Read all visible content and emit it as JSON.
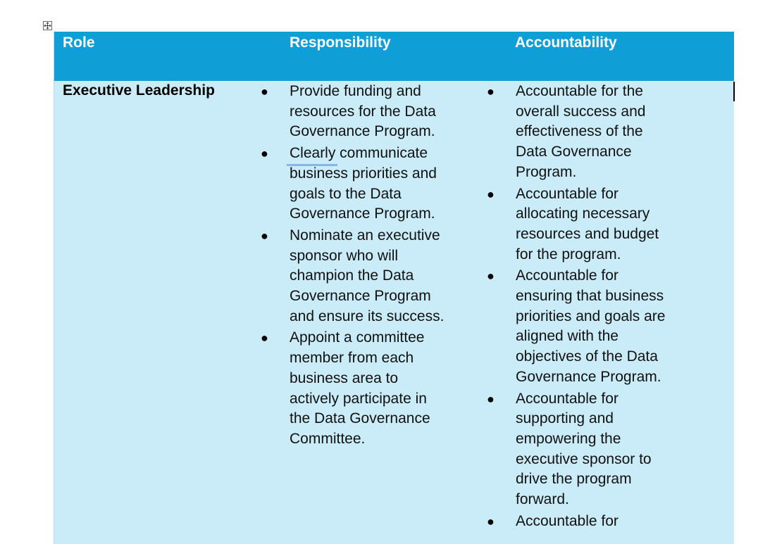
{
  "table": {
    "headers": {
      "role": "Role",
      "responsibility": "Responsibility",
      "accountability": "Accountability"
    },
    "rows": [
      {
        "role": "Executive Leadership",
        "responsibility": [
          "Provide funding and resources for the Data Governance Program.",
          "Clearly communicate business priorities and goals to the Data Governance Program.",
          "Nominate an executive sponsor who will champion the Data Governance Program and ensure its success.",
          "Appoint a committee member from each business area to actively participate in the Data Governance Committee."
        ],
        "accountability": [
          "Accountable for the overall success and effectiveness of the Data Governance Program.",
          "Accountable for allocating necessary resources and budget for the program.",
          "Accountable for ensuring that business priorities and goals are aligned with the objectives of the Data Governance Program.",
          "Accountable for supporting and empowering the executive sponsor to drive the program forward.",
          "Accountable for"
        ]
      }
    ]
  },
  "bullet_glyph": "●",
  "colors": {
    "header_background": "#0f9ed5",
    "row_background": "#caecf9",
    "header_text": "#ffffff"
  }
}
